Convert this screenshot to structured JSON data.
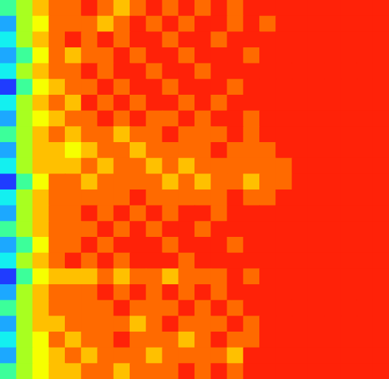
{
  "chart_data": {
    "type": "heatmap",
    "zlim": [
      0,
      1
    ],
    "tick_labels": false,
    "cells": [
      [
        0.45,
        0.62,
        0.78,
        0.82,
        0.85,
        0.92,
        0.85,
        0.78,
        0.86,
        0.95,
        0.86,
        0.95,
        0.88,
        0.95,
        0.86,
        0.95,
        0.95,
        1,
        1,
        1,
        1,
        1,
        1,
        1
      ],
      [
        0.3,
        0.55,
        0.7,
        0.8,
        0.86,
        0.85,
        0.78,
        0.86,
        0.92,
        0.85,
        0.95,
        0.86,
        0.95,
        0.95,
        0.88,
        0.95,
        0.87,
        1,
        1,
        1,
        1,
        1,
        1,
        1
      ],
      [
        0.4,
        0.6,
        0.75,
        0.85,
        0.92,
        0.86,
        0.95,
        0.85,
        0.95,
        0.93,
        0.86,
        0.95,
        0.95,
        0.86,
        0.95,
        0.95,
        0.95,
        1,
        1,
        1,
        1,
        1,
        1,
        1
      ],
      [
        0.25,
        0.5,
        0.7,
        0.8,
        0.78,
        0.86,
        0.86,
        0.92,
        0.86,
        0.95,
        0.95,
        0.88,
        0.95,
        0.95,
        0.95,
        0.86,
        0.95,
        1,
        1,
        1,
        1,
        1,
        1,
        1
      ],
      [
        0.35,
        0.58,
        0.72,
        0.82,
        0.86,
        0.95,
        0.85,
        0.95,
        0.95,
        0.86,
        0.95,
        0.95,
        0.86,
        0.95,
        0.95,
        0.95,
        0.95,
        1,
        1,
        1,
        1,
        1,
        1,
        1
      ],
      [
        0.2,
        0.45,
        0.68,
        0.78,
        0.85,
        0.86,
        0.92,
        0.86,
        0.95,
        0.95,
        0.86,
        0.95,
        0.95,
        0.95,
        0.88,
        0.95,
        0.95,
        1,
        1,
        1,
        1,
        1,
        1,
        1
      ],
      [
        0.4,
        0.55,
        0.75,
        0.86,
        0.78,
        0.95,
        0.86,
        0.95,
        0.86,
        0.95,
        0.95,
        0.86,
        0.95,
        0.86,
        0.95,
        0.95,
        1,
        1,
        1,
        1,
        1,
        1,
        1,
        1
      ],
      [
        0.3,
        0.6,
        0.7,
        0.78,
        0.86,
        0.85,
        0.95,
        0.86,
        0.95,
        0.86,
        0.86,
        0.95,
        0.86,
        0.95,
        0.95,
        0.87,
        0.95,
        1,
        1,
        1,
        1,
        1,
        1,
        1
      ],
      [
        0.45,
        0.62,
        0.78,
        0.85,
        0.72,
        0.86,
        0.85,
        0.78,
        0.86,
        0.85,
        0.95,
        0.86,
        0.88,
        0.86,
        0.95,
        0.86,
        0.95,
        1,
        1,
        1,
        1,
        1,
        1,
        1
      ],
      [
        0.25,
        0.55,
        0.72,
        0.76,
        0.7,
        0.78,
        0.85,
        0.86,
        0.78,
        0.86,
        0.85,
        0.86,
        0.85,
        0.95,
        0.86,
        0.88,
        0.86,
        0.95,
        1,
        1,
        1,
        1,
        1,
        1
      ],
      [
        0.35,
        0.6,
        0.75,
        0.78,
        0.76,
        0.85,
        0.74,
        0.85,
        0.86,
        0.78,
        0.86,
        0.72,
        0.85,
        0.86,
        0.85,
        0.86,
        0.85,
        0.88,
        1,
        1,
        1,
        1,
        1,
        1
      ],
      [
        0.2,
        0.5,
        0.7,
        0.8,
        0.86,
        0.78,
        0.85,
        0.86,
        0.85,
        0.86,
        0.78,
        0.86,
        0.78,
        0.85,
        0.86,
        0.78,
        0.86,
        0.86,
        0.95,
        1,
        1,
        1,
        1,
        1
      ],
      [
        0.4,
        0.58,
        0.76,
        0.85,
        0.86,
        0.86,
        0.85,
        0.86,
        0.95,
        0.86,
        0.85,
        0.86,
        0.86,
        0.85,
        0.95,
        0.86,
        0.86,
        0.95,
        1,
        1,
        1,
        1,
        1,
        1
      ],
      [
        0.3,
        0.55,
        0.72,
        0.82,
        0.86,
        0.95,
        0.86,
        0.95,
        0.86,
        0.95,
        0.86,
        0.95,
        0.95,
        0.86,
        0.95,
        0.95,
        0.95,
        1,
        1,
        1,
        1,
        1,
        1,
        1
      ],
      [
        0.45,
        0.6,
        0.78,
        0.86,
        0.85,
        0.86,
        0.95,
        0.86,
        0.95,
        0.86,
        0.95,
        0.95,
        0.86,
        0.95,
        0.95,
        0.95,
        1,
        1,
        1,
        1,
        1,
        1,
        1,
        1
      ],
      [
        0.25,
        0.52,
        0.7,
        0.8,
        0.86,
        0.95,
        0.86,
        0.95,
        0.95,
        0.95,
        0.86,
        0.95,
        0.95,
        0.95,
        0.86,
        0.95,
        0.95,
        1,
        1,
        1,
        1,
        1,
        1,
        1
      ],
      [
        0.35,
        0.58,
        0.75,
        0.85,
        0.92,
        0.86,
        0.95,
        0.86,
        0.95,
        0.95,
        0.95,
        0.86,
        0.95,
        0.95,
        0.95,
        0.95,
        1,
        1,
        1,
        1,
        1,
        1,
        1,
        1
      ],
      [
        0.15,
        0.5,
        0.68,
        0.78,
        0.72,
        0.78,
        0.86,
        0.78,
        0.85,
        0.86,
        0.78,
        0.86,
        0.85,
        0.86,
        0.95,
        0.86,
        0.95,
        1,
        1,
        1,
        1,
        1,
        1,
        1
      ],
      [
        0.3,
        0.55,
        0.72,
        0.82,
        0.86,
        0.86,
        0.92,
        0.86,
        0.95,
        0.86,
        0.95,
        0.86,
        0.95,
        0.86,
        0.95,
        0.95,
        0.95,
        1,
        1,
        1,
        1,
        1,
        1,
        1
      ],
      [
        0.45,
        0.62,
        0.76,
        0.8,
        0.85,
        0.86,
        0.85,
        0.95,
        0.86,
        0.85,
        0.86,
        0.95,
        0.86,
        0.95,
        0.86,
        0.95,
        0.95,
        1,
        1,
        1,
        1,
        1,
        1,
        1
      ],
      [
        0.3,
        0.58,
        0.72,
        0.78,
        0.86,
        0.85,
        0.86,
        0.86,
        0.78,
        0.86,
        0.95,
        0.86,
        0.85,
        0.86,
        0.95,
        0.86,
        0.95,
        1,
        1,
        1,
        1,
        1,
        1,
        1
      ],
      [
        0.4,
        0.55,
        0.7,
        0.8,
        0.78,
        0.86,
        0.85,
        0.95,
        0.86,
        0.85,
        0.86,
        0.78,
        0.86,
        0.95,
        0.86,
        0.86,
        0.95,
        1,
        1,
        1,
        1,
        1,
        1,
        1
      ],
      [
        0.25,
        0.6,
        0.68,
        0.76,
        0.86,
        0.78,
        0.86,
        0.85,
        0.86,
        0.78,
        0.86,
        0.86,
        0.85,
        0.86,
        0.78,
        0.95,
        0.95,
        1,
        1,
        1,
        1,
        1,
        1,
        1
      ],
      [
        0.45,
        0.62,
        0.7,
        0.72,
        0.78,
        0.85,
        0.86,
        0.78,
        0.86,
        0.85,
        0.86,
        0.95,
        0.86,
        0.95,
        0.86,
        0.95,
        0.95,
        1,
        1,
        1,
        1,
        1,
        1,
        1
      ]
    ]
  }
}
